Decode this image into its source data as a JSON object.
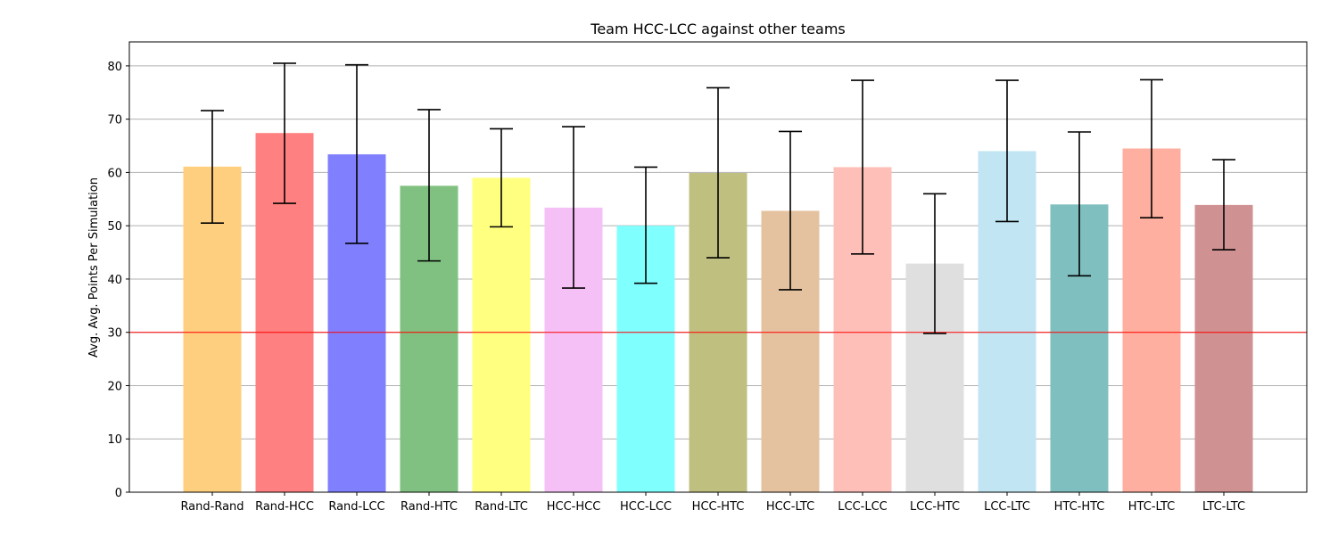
{
  "chart_data": {
    "type": "bar",
    "title": "Team HCC-LCC against other teams",
    "xlabel": "",
    "ylabel": "Avg. Avg. Points Per Simulation",
    "ylim": [
      0,
      84.5
    ],
    "yticks": [
      0,
      10,
      20,
      30,
      40,
      50,
      60,
      70,
      80
    ],
    "grid": "y",
    "reference_line": {
      "value": 30,
      "color": "#ff0000"
    },
    "categories": [
      "Rand-Rand",
      "Rand-HCC",
      "Rand-LCC",
      "Rand-HTC",
      "Rand-LTC",
      "HCC-HCC",
      "HCC-LCC",
      "HCC-HTC",
      "HCC-LTC",
      "LCC-LCC",
      "LCC-HTC",
      "LCC-LTC",
      "HTC-HTC",
      "HTC-LTC",
      "LTC-LTC"
    ],
    "values": [
      61.1,
      67.4,
      63.4,
      57.5,
      59.0,
      53.4,
      50.0,
      59.9,
      52.8,
      61.0,
      42.9,
      64.0,
      54.0,
      64.5,
      53.9
    ],
    "error_low": [
      50.5,
      54.2,
      46.7,
      43.4,
      49.8,
      38.3,
      39.2,
      44.0,
      38.0,
      44.7,
      29.8,
      50.8,
      40.6,
      51.5,
      45.5
    ],
    "error_high": [
      71.6,
      80.5,
      80.2,
      71.8,
      68.2,
      68.6,
      61.0,
      75.9,
      67.7,
      77.3,
      56.0,
      77.3,
      67.6,
      77.4,
      62.4
    ],
    "colors": [
      "#ffcf80",
      "#ff8080",
      "#8080ff",
      "#80c080",
      "#ffff80",
      "#f5c0f5",
      "#80ffff",
      "#bfbf80",
      "#e5c29f",
      "#fdbfb8",
      "#dfdfdf",
      "#c1e5f3",
      "#80bfbf",
      "#ffaf9f",
      "#cf9191"
    ]
  }
}
